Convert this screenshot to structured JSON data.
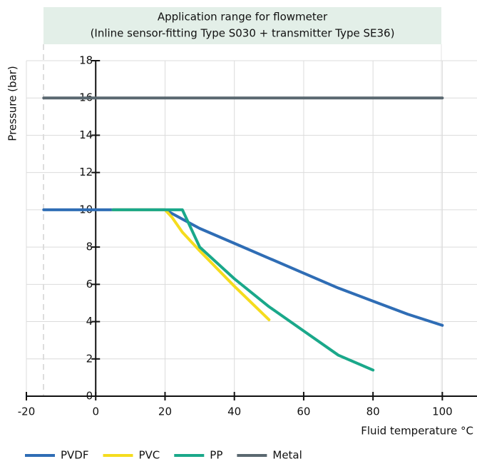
{
  "chart_data": {
    "type": "line",
    "title": [
      "Application range for flowmeter",
      "(Inline sensor-fitting Type S030 + transmitter Type SE36)"
    ],
    "x_label": "Fluid temperature  °C",
    "y_label": "Pressure (bar)",
    "xlim": [
      -20,
      110
    ],
    "xticks": [
      -20,
      0,
      20,
      40,
      60,
      80,
      100
    ],
    "ylim": [
      0,
      18
    ],
    "yticks": [
      0,
      2,
      4,
      6,
      8,
      10,
      12,
      14,
      16,
      18
    ],
    "grid": true,
    "legend": "bottom",
    "series": [
      {
        "name": "PVDF",
        "color": "#2f6db5",
        "x": [
          -15,
          20,
          30,
          40,
          50,
          60,
          70,
          80,
          90,
          100
        ],
        "values": [
          10,
          10,
          9,
          8.2,
          7.4,
          6.6,
          5.8,
          5.1,
          4.4,
          3.8
        ]
      },
      {
        "name": "PVC",
        "color": "#f5dc1e",
        "x": [
          5,
          20,
          22,
          25,
          30,
          40,
          50
        ],
        "values": [
          10,
          10,
          9.6,
          8.8,
          7.8,
          5.9,
          4.1
        ]
      },
      {
        "name": "PP",
        "color": "#1aa88a",
        "x": [
          5,
          25,
          26,
          30,
          40,
          50,
          60,
          70,
          80
        ],
        "values": [
          10,
          10,
          9.6,
          8,
          6.3,
          4.8,
          3.5,
          2.2,
          1.4
        ]
      },
      {
        "name": "Metal",
        "color": "#5a6870",
        "x": [
          -15,
          100
        ],
        "values": [
          16,
          16
        ]
      }
    ]
  }
}
